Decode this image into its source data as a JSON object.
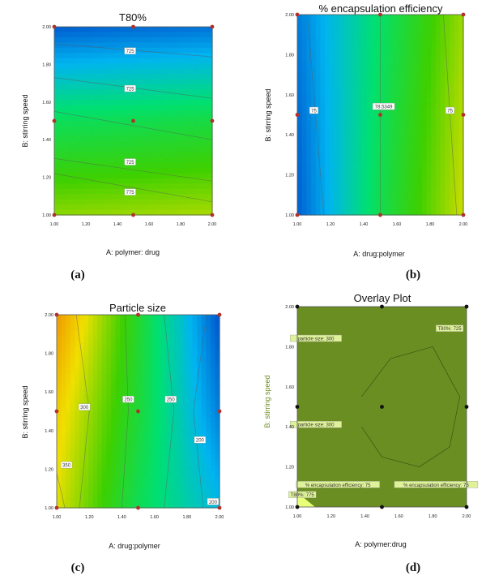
{
  "chart_data": [
    {
      "type": "heatmap",
      "panel_label": "(a)",
      "title": "T80%",
      "xlabel": "A: polymer: drug",
      "ylabel": "B: stirring speed",
      "xlim": [
        1.0,
        2.0
      ],
      "ylim": [
        1.0,
        2.0
      ],
      "x_ticks": [
        "1.00",
        "1.20",
        "1.40",
        "1.60",
        "1.80",
        "2.00"
      ],
      "y_ticks": [
        "1.00",
        "1.20",
        "1.40",
        "1.60",
        "1.80",
        "2.00"
      ],
      "colormap": [
        "#0047c8",
        "#00b4f0",
        "#00e070",
        "#3ed000",
        "#f0e000"
      ],
      "value_range": [
        0,
        1
      ],
      "grid_values": [
        [
          0.86,
          0.88,
          0.9
        ],
        [
          0.55,
          0.57,
          0.6
        ],
        [
          0.05,
          0.08,
          0.1
        ]
      ],
      "contours": [
        {
          "label": "725",
          "x": [
            1.0,
            2.0
          ],
          "y": [
            1.91,
            1.84
          ]
        },
        {
          "label": "725",
          "x": [
            1.0,
            2.0
          ],
          "y": [
            1.73,
            1.62
          ]
        },
        {
          "label": "775",
          "x": [
            1.0,
            2.0
          ],
          "y": [
            1.55,
            1.4
          ]
        },
        {
          "label": "725",
          "x": [
            1.0,
            2.0
          ],
          "y": [
            1.3,
            1.18
          ]
        },
        {
          "label": "775",
          "x": [
            1.0,
            2.0
          ],
          "y": [
            1.22,
            1.07
          ]
        }
      ],
      "contour_labels": [
        {
          "text": "725",
          "x": 1.48,
          "y": 1.87
        },
        {
          "text": "725",
          "x": 1.48,
          "y": 1.67
        },
        {
          "text": "725",
          "x": 1.48,
          "y": 1.28
        },
        {
          "text": "775",
          "x": 1.48,
          "y": 1.12
        }
      ],
      "design_points": [
        {
          "x": 1.0,
          "y": 1.0
        },
        {
          "x": 1.5,
          "y": 1.0
        },
        {
          "x": 2.0,
          "y": 1.0
        },
        {
          "x": 1.0,
          "y": 1.5
        },
        {
          "x": 1.5,
          "y": 1.5
        },
        {
          "x": 2.0,
          "y": 1.5
        },
        {
          "x": 1.0,
          "y": 2.0
        },
        {
          "x": 1.5,
          "y": 2.0
        },
        {
          "x": 2.0,
          "y": 2.0
        }
      ],
      "point_color": "#b0322b"
    },
    {
      "type": "heatmap",
      "panel_label": "(b)",
      "title": "% encapsulation efficiency",
      "xlabel": "A: drug:polymer",
      "ylabel": "B: stirring speed",
      "xlim": [
        1.0,
        2.0
      ],
      "ylim": [
        1.0,
        2.0
      ],
      "x_ticks": [
        "1.00",
        "1.20",
        "1.40",
        "1.60",
        "1.80",
        "2.00"
      ],
      "y_ticks": [
        "1.00",
        "1.20",
        "1.40",
        "1.60",
        "1.80",
        "2.00"
      ],
      "colormap": [
        "#0047c8",
        "#00b4f0",
        "#00e070",
        "#3ed000",
        "#f0e000"
      ],
      "value_range": [
        0,
        1
      ],
      "grid_values": [
        [
          0.05,
          0.58,
          0.95
        ],
        [
          0.08,
          0.55,
          0.92
        ],
        [
          0.12,
          0.52,
          0.88
        ]
      ],
      "contours": [
        {
          "label": "75",
          "x": [
            1.06,
            1.16
          ],
          "y": [
            2.0,
            1.0
          ]
        },
        {
          "label": "78.5349",
          "x": [
            1.5,
            1.5
          ],
          "y": [
            2.0,
            1.0
          ]
        },
        {
          "label": "75",
          "x": [
            1.88,
            1.96
          ],
          "y": [
            2.0,
            1.0
          ]
        }
      ],
      "contour_labels": [
        {
          "text": "75",
          "x": 1.1,
          "y": 1.52
        },
        {
          "text": "78.5349",
          "x": 1.52,
          "y": 1.54
        },
        {
          "text": "75",
          "x": 1.92,
          "y": 1.52
        }
      ],
      "design_points": [
        {
          "x": 1.0,
          "y": 1.0
        },
        {
          "x": 1.5,
          "y": 1.0
        },
        {
          "x": 2.0,
          "y": 1.0
        },
        {
          "x": 1.0,
          "y": 1.5
        },
        {
          "x": 1.5,
          "y": 1.5
        },
        {
          "x": 2.0,
          "y": 1.5
        },
        {
          "x": 1.0,
          "y": 2.0
        },
        {
          "x": 1.5,
          "y": 2.0
        },
        {
          "x": 2.0,
          "y": 2.0
        }
      ],
      "point_color": "#b0322b"
    },
    {
      "type": "heatmap",
      "panel_label": "(c)",
      "title": "Particle size",
      "xlabel": "A: drug:polymer",
      "ylabel": "B: stirring speed",
      "xlim": [
        1.0,
        2.0
      ],
      "ylim": [
        1.0,
        2.0
      ],
      "x_ticks": [
        "1.00",
        "1.20",
        "1.40",
        "1.60",
        "1.80",
        "2.00"
      ],
      "y_ticks": [
        "1.00",
        "1.20",
        "1.40",
        "1.60",
        "1.80",
        "2.00"
      ],
      "colormap": [
        "#0047c8",
        "#00b4f0",
        "#00e070",
        "#3ed000",
        "#f0e000",
        "#f08000"
      ],
      "value_range": [
        0,
        1
      ],
      "grid_values": [
        [
          0.78,
          0.45,
          0.22
        ],
        [
          0.84,
          0.5,
          0.1
        ],
        [
          0.95,
          0.52,
          0.02
        ]
      ],
      "contours": [
        {
          "label": "300",
          "x": [
            1.12,
            1.2,
            1.14
          ],
          "y": [
            2.0,
            1.5,
            1.0
          ]
        },
        {
          "label": "250",
          "x": [
            1.42,
            1.44,
            1.4
          ],
          "y": [
            2.0,
            1.5,
            1.0
          ]
        },
        {
          "label": "250",
          "x": [
            1.66,
            1.72,
            1.66
          ],
          "y": [
            2.0,
            1.5,
            1.0
          ]
        },
        {
          "label": "200",
          "x": [
            1.92,
            1.84,
            1.9
          ],
          "y": [
            2.0,
            1.5,
            1.0
          ]
        },
        {
          "label": "350",
          "x": [
            1.0,
            1.05
          ],
          "y": [
            1.18,
            1.0
          ]
        }
      ],
      "contour_labels": [
        {
          "text": "300",
          "x": 1.17,
          "y": 1.52
        },
        {
          "text": "250",
          "x": 1.44,
          "y": 1.56
        },
        {
          "text": "250",
          "x": 1.7,
          "y": 1.56
        },
        {
          "text": "200",
          "x": 1.88,
          "y": 1.35
        },
        {
          "text": "350",
          "x": 1.06,
          "y": 1.22
        },
        {
          "text": "200",
          "x": 1.96,
          "y": 1.03
        }
      ],
      "design_points": [
        {
          "x": 1.0,
          "y": 1.0
        },
        {
          "x": 1.5,
          "y": 1.0
        },
        {
          "x": 2.0,
          "y": 1.0
        },
        {
          "x": 1.0,
          "y": 1.5
        },
        {
          "x": 1.5,
          "y": 1.5
        },
        {
          "x": 2.0,
          "y": 1.5
        },
        {
          "x": 1.0,
          "y": 2.0
        },
        {
          "x": 1.5,
          "y": 2.0
        },
        {
          "x": 2.0,
          "y": 2.0
        }
      ],
      "point_color": "#b0322b"
    },
    {
      "type": "heatmap",
      "panel_label": "(d)",
      "title": "Overlay Plot",
      "xlabel": "A: polymer:drug",
      "ylabel": "B: stirring speed",
      "xlim": [
        1.0,
        2.0
      ],
      "ylim": [
        1.0,
        2.0
      ],
      "x_ticks": [
        "1.00",
        "1.20",
        "1.40",
        "1.60",
        "1.80",
        "2.00"
      ],
      "y_ticks": [
        "1.00",
        "1.20",
        "1.40",
        "1.60",
        "1.80",
        "2.00"
      ],
      "fill_color": "#6b8e23",
      "highlight_color": "#e8ff7a",
      "contours": [
        {
          "label": "particle size: 300",
          "x": [
            1.38,
            1.55,
            1.8,
            1.96,
            1.9,
            1.72,
            1.5,
            1.38
          ],
          "y": [
            1.55,
            1.74,
            1.8,
            1.55,
            1.3,
            1.2,
            1.25,
            1.4
          ]
        }
      ],
      "contour_labels": [
        {
          "text": "T80%: 725",
          "x": 1.9,
          "y": 1.89
        },
        {
          "text": "particle size: 300",
          "x": 1.11,
          "y": 1.84
        },
        {
          "text": "particle size: 300",
          "x": 1.11,
          "y": 1.41
        },
        {
          "text": "% encapsulation efficiency: 75",
          "x": 1.24,
          "y": 1.11
        },
        {
          "text": "T80%: 775",
          "x": 1.03,
          "y": 1.06
        },
        {
          "text": "% encapsulation efficiency: 75",
          "x": 1.82,
          "y": 1.11
        }
      ],
      "design_points": [
        {
          "x": 1.0,
          "y": 1.0
        },
        {
          "x": 1.5,
          "y": 1.0
        },
        {
          "x": 2.0,
          "y": 1.0
        },
        {
          "x": 1.0,
          "y": 1.5
        },
        {
          "x": 1.5,
          "y": 1.5
        },
        {
          "x": 2.0,
          "y": 1.5
        },
        {
          "x": 1.0,
          "y": 2.0
        },
        {
          "x": 1.5,
          "y": 2.0
        },
        {
          "x": 2.0,
          "y": 2.0
        }
      ],
      "point_color": "#111111"
    }
  ]
}
